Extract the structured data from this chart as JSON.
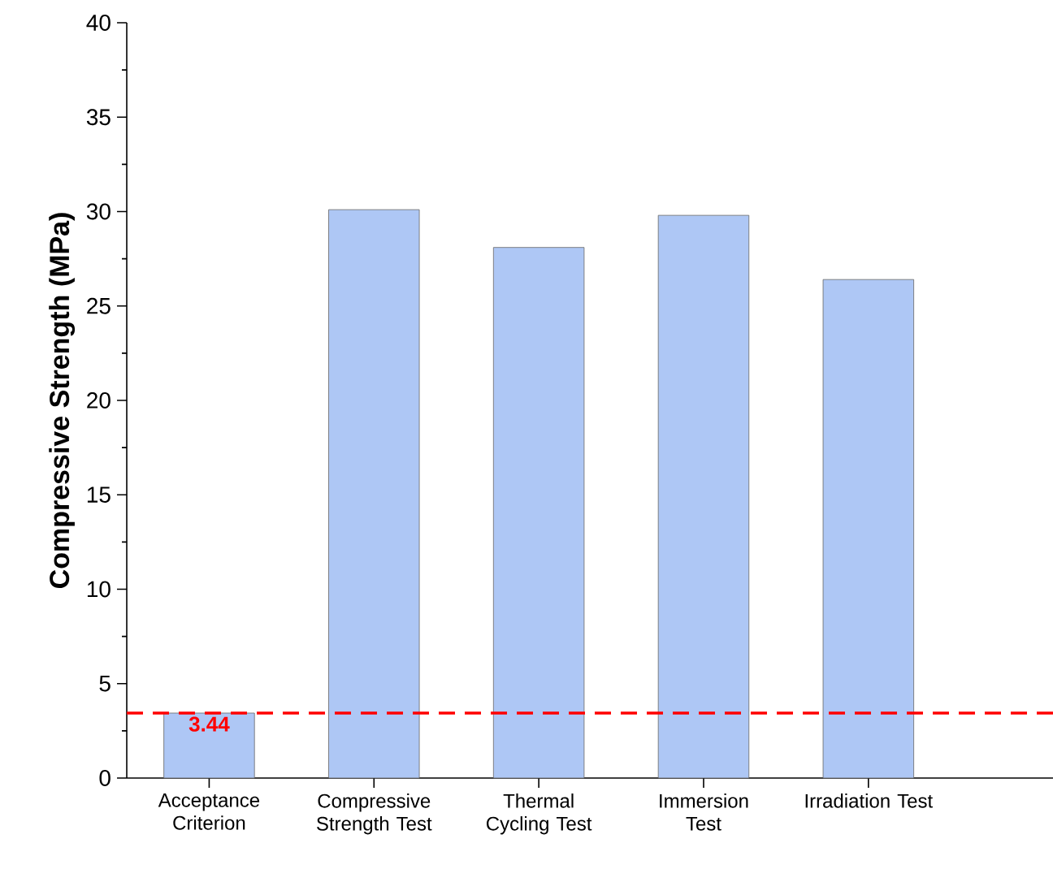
{
  "chart_data": {
    "type": "bar",
    "ylabel": "Compressive Strength (MPa)",
    "categories": [
      "Acceptance Criterion",
      "Compressive Strength Test",
      "Thermal Cycling Test",
      "Immersion Test",
      "Irradiation Test"
    ],
    "values": [
      3.44,
      30.1,
      28.1,
      29.8,
      26.4
    ],
    "color": "#aec7f5",
    "ylim": [
      0,
      40
    ],
    "yticks": [
      0,
      5,
      10,
      15,
      20,
      25,
      30,
      35,
      40
    ],
    "ref_lines": [
      {
        "axis": "y",
        "value": 3.44,
        "label": "3.44",
        "color": "#ff0000",
        "line_style": "dashed"
      }
    ]
  }
}
